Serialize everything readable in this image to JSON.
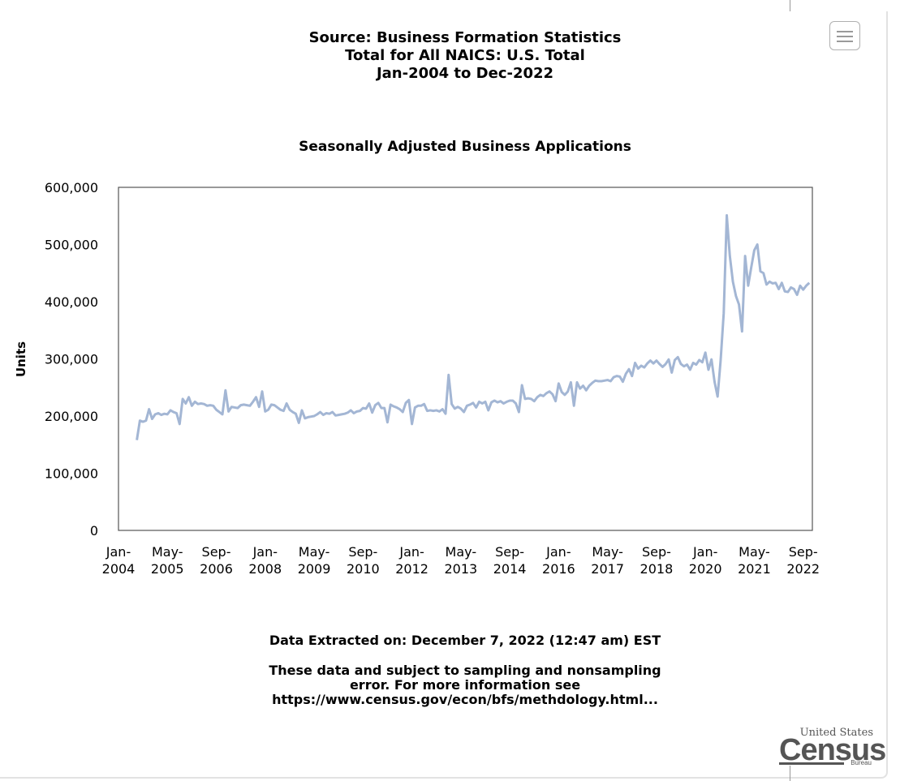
{
  "header": {
    "line1": "Source: Business Formation Statistics",
    "line2": "Total for All NAICS: U.S. Total",
    "line3": "Jan-2004 to Dec-2022"
  },
  "menu": {
    "icon": "hamburger-menu-icon"
  },
  "footer": {
    "extracted": "Data Extracted on: December 7, 2022 (12:47 am) EST",
    "note_line1": "These data and subject to sampling and nonsampling",
    "note_line2": "error. For more information see",
    "note_line3": "https://www.census.gov/econ/bfs/methdology.html..."
  },
  "logo": {
    "top": "United States",
    "main": "Census",
    "bottom": "Bureau"
  },
  "colors": {
    "line": "#a3b6d4",
    "plot_border": "#555555",
    "text": "#000000"
  },
  "chart_data": {
    "type": "line",
    "title": "Seasonally Adjusted Business Applications",
    "ylabel": "Units",
    "xlabel": "",
    "ylim": [
      0,
      600000
    ],
    "y_ticks": [
      0,
      100000,
      200000,
      300000,
      400000,
      500000,
      600000
    ],
    "y_tick_labels": [
      "0",
      "100,000",
      "200,000",
      "300,000",
      "400,000",
      "500,000",
      "600,000"
    ],
    "x_tick_labels": [
      [
        "Jan-",
        "2004"
      ],
      [
        "May-",
        "2005"
      ],
      [
        "Sep-",
        "2006"
      ],
      [
        "Jan-",
        "2008"
      ],
      [
        "May-",
        "2009"
      ],
      [
        "Sep-",
        "2010"
      ],
      [
        "Jan-",
        "2012"
      ],
      [
        "May-",
        "2013"
      ],
      [
        "Sep-",
        "2014"
      ],
      [
        "Jan-",
        "2016"
      ],
      [
        "May-",
        "2017"
      ],
      [
        "Sep-",
        "2018"
      ],
      [
        "Jan-",
        "2020"
      ],
      [
        "May-",
        "2021"
      ],
      [
        "Sep-",
        "2022"
      ]
    ],
    "grid": false,
    "legend": "none",
    "start": "2004-07",
    "series": [
      {
        "values": [
          158000,
          192000,
          190000,
          192000,
          212000,
          195000,
          203000,
          205000,
          202000,
          204000,
          203000,
          210000,
          207000,
          205000,
          186000,
          230000,
          222000,
          233000,
          218000,
          225000,
          221000,
          222000,
          221000,
          218000,
          219000,
          218000,
          211000,
          207000,
          203000,
          245000,
          208000,
          216000,
          215000,
          214000,
          219000,
          220000,
          219000,
          218000,
          225000,
          233000,
          216000,
          243000,
          208000,
          211000,
          220000,
          219000,
          215000,
          211000,
          209000,
          222000,
          211000,
          207000,
          204000,
          188000,
          210000,
          196000,
          198000,
          199000,
          200000,
          203000,
          207000,
          202000,
          205000,
          204000,
          207000,
          201000,
          202000,
          203000,
          204000,
          206000,
          210000,
          205000,
          208000,
          209000,
          214000,
          213000,
          222000,
          206000,
          219000,
          223000,
          214000,
          214000,
          189000,
          220000,
          217000,
          215000,
          212000,
          207000,
          223000,
          228000,
          186000,
          215000,
          218000,
          218000,
          221000,
          209000,
          210000,
          209000,
          210000,
          208000,
          212000,
          204000,
          272000,
          221000,
          213000,
          216000,
          213000,
          207000,
          218000,
          220000,
          223000,
          215000,
          225000,
          222000,
          225000,
          210000,
          224000,
          227000,
          224000,
          226000,
          222000,
          225000,
          227000,
          227000,
          222000,
          207000,
          254000,
          230000,
          231000,
          230000,
          226000,
          233000,
          237000,
          235000,
          240000,
          243000,
          238000,
          226000,
          257000,
          242000,
          237000,
          243000,
          259000,
          218000,
          259000,
          248000,
          253000,
          245000,
          253000,
          258000,
          262000,
          261000,
          261000,
          262000,
          263000,
          261000,
          268000,
          270000,
          269000,
          260000,
          274000,
          282000,
          270000,
          293000,
          283000,
          288000,
          285000,
          292000,
          297000,
          292000,
          297000,
          291000,
          286000,
          291000,
          299000,
          276000,
          298000,
          303000,
          291000,
          287000,
          290000,
          281000,
          293000,
          290000,
          298000,
          294000,
          311000,
          281000,
          299000,
          260000,
          234000,
          298000,
          380000,
          551000,
          480000,
          435000,
          410000,
          395000,
          348000,
          480000,
          428000,
          460000,
          490000,
          500000,
          453000,
          450000,
          430000,
          435000,
          432000,
          433000,
          422000,
          433000,
          418000,
          417000,
          425000,
          422000,
          412000,
          428000,
          421000,
          428000,
          433000
        ]
      }
    ]
  }
}
